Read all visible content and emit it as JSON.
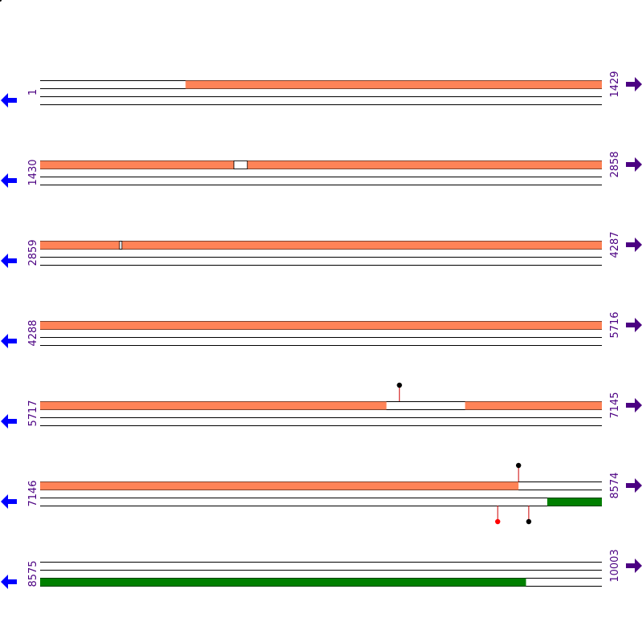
{
  "colors": {
    "forward_feature": "#ff8357",
    "reverse_feature": "#008000",
    "position_label": "#4b0082",
    "left_arrow": "#0000ff",
    "right_arrow": "#4b0082",
    "marker_black": "#000000",
    "marker_red": "#ff0000",
    "stem": "#cc0000",
    "strand_line": "#000000"
  },
  "icons": {
    "left": "left-arrow-icon",
    "right": "right-arrow-icon"
  },
  "rows": [
    {
      "start": "1",
      "end": "1429",
      "from": 1,
      "to": 1429,
      "features": [
        {
          "track": 0,
          "from": 371,
          "to": 1429,
          "color": "forward_feature"
        }
      ],
      "gaps": [],
      "markers": []
    },
    {
      "start": "1430",
      "end": "2858",
      "from": 1430,
      "to": 2858,
      "features": [
        {
          "track": 0,
          "from": 1430,
          "to": 2858,
          "color": "forward_feature"
        }
      ],
      "gaps": [
        {
          "track": 0,
          "from": 1923,
          "to": 1956
        }
      ],
      "markers": []
    },
    {
      "start": "2859",
      "end": "4287",
      "from": 2859,
      "to": 4287,
      "features": [
        {
          "track": 0,
          "from": 2859,
          "to": 4287,
          "color": "forward_feature"
        }
      ],
      "gaps": [
        {
          "track": 0,
          "from": 3061,
          "to": 3066
        }
      ],
      "markers": []
    },
    {
      "start": "4288",
      "end": "5716",
      "from": 4288,
      "to": 5716,
      "features": [
        {
          "track": 0,
          "from": 4288,
          "to": 5716,
          "color": "forward_feature"
        }
      ],
      "gaps": [],
      "markers": []
    },
    {
      "start": "5717",
      "end": "7145",
      "from": 5717,
      "to": 7145,
      "features": [
        {
          "track": 0,
          "from": 5717,
          "to": 6597,
          "color": "forward_feature"
        },
        {
          "track": 0,
          "from": 6798,
          "to": 7145,
          "color": "forward_feature"
        }
      ],
      "gaps": [],
      "markers": [
        {
          "pos": 6631,
          "dir": "up",
          "color": "marker_black"
        }
      ]
    },
    {
      "start": "7146",
      "end": "8574",
      "from": 7146,
      "to": 8574,
      "features": [
        {
          "track": 0,
          "from": 7146,
          "to": 8362,
          "color": "forward_feature"
        },
        {
          "track": 2,
          "from": 8436,
          "to": 8574,
          "color": "reverse_feature"
        }
      ],
      "gaps": [],
      "markers": [
        {
          "pos": 8363,
          "dir": "up",
          "color": "marker_black"
        },
        {
          "pos": 8310,
          "dir": "down",
          "color": "marker_red"
        },
        {
          "pos": 8389,
          "dir": "down",
          "color": "marker_black"
        }
      ]
    },
    {
      "start": "8575",
      "end": "10003",
      "from": 8575,
      "to": 10003,
      "features": [
        {
          "track": 2,
          "from": 8575,
          "to": 9810,
          "color": "reverse_feature"
        }
      ],
      "gaps": [],
      "markers": []
    }
  ]
}
